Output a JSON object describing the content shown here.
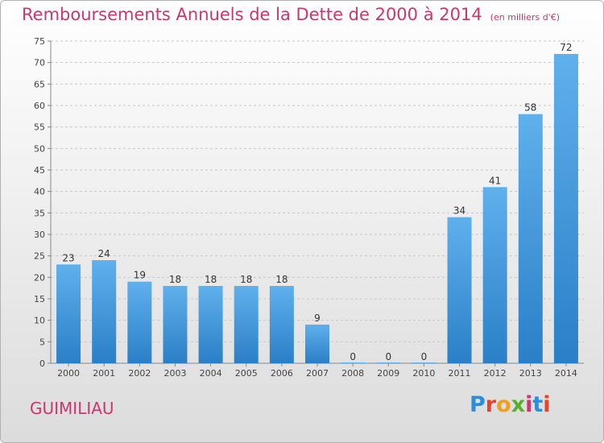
{
  "page": {
    "title": "Remboursements Annuels de la Dette de 2000 à 2014",
    "unit_note": "(en milliers d'€)",
    "commune": "GUIMILIAU",
    "logo_text": "Proxiti"
  },
  "colors": {
    "title": "#c8386e",
    "bar_top": "#5fb0ec",
    "bar_bottom": "#2a7fc6",
    "grid": "#c8c8c8",
    "logo_letters": [
      "#2a8fd8",
      "#e8442a",
      "#f0a020",
      "#58b02e",
      "#c8386e",
      "#2a8fd8",
      "#e8442a"
    ]
  },
  "chart_data": {
    "type": "bar",
    "title": "Remboursements Annuels de la Dette de 2000 à 2014",
    "categories": [
      "2000",
      "2001",
      "2002",
      "2003",
      "2004",
      "2005",
      "2006",
      "2007",
      "2008",
      "2009",
      "2010",
      "2011",
      "2012",
      "2013",
      "2014"
    ],
    "values": [
      23,
      24,
      19,
      18,
      18,
      18,
      18,
      9,
      0,
      0,
      0,
      34,
      41,
      58,
      72
    ],
    "ylim": [
      0,
      75
    ],
    "yticks": [
      0,
      5,
      10,
      15,
      20,
      25,
      30,
      35,
      40,
      45,
      50,
      55,
      60,
      65,
      70,
      75
    ],
    "grid": true,
    "data_labels": true
  }
}
